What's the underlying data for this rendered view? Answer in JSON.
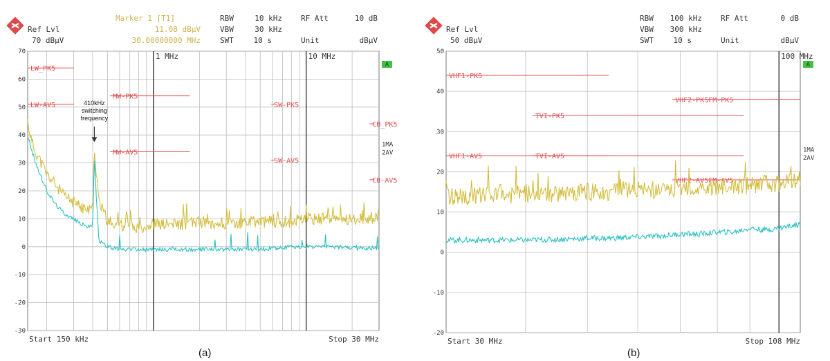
{
  "panels": [
    {
      "id": "a",
      "caption": "(a)",
      "header": {
        "ref_label": "Ref Lvl",
        "ref_value": "70 dBµV",
        "marker_title": "Marker 1 [T1]",
        "marker_level": "11.08 dBµV",
        "marker_freq": "30.00000000 MHz",
        "rbw_label": "RBW",
        "rbw_value": "10 kHz",
        "vbw_label": "VBW",
        "vbw_value": "30 kHz",
        "swt_label": "SWT",
        "swt_value": "10 s",
        "att_label": "RF Att",
        "att_value": "10 dB",
        "unit_label": "Unit",
        "unit_value": "dBµV"
      },
      "start_label": "Start 150 kHz",
      "stop_label": "Stop 30 MHz",
      "trace_labels": [
        "1MA",
        "2AV"
      ],
      "green_tag": "A",
      "decade_labels": [
        {
          "f": 1,
          "label": "1 MHz"
        },
        {
          "f": 10,
          "label": "10 MHz"
        }
      ],
      "annotation": {
        "lines": [
          "410kHz",
          "switching",
          "frequency"
        ],
        "x": 0.41,
        "y": 37
      }
    },
    {
      "id": "b",
      "caption": "(b)",
      "header": {
        "ref_label": "Ref Lvl",
        "ref_value": "50 dBµV",
        "rbw_label": "RBW",
        "rbw_value": "100 kHz",
        "vbw_label": "VBW",
        "vbw_value": "300 kHz",
        "swt_label": "SWT",
        "swt_value": "10 s",
        "att_label": "RF Att",
        "att_value": "0 dB",
        "unit_label": "Unit",
        "unit_value": "dBµV"
      },
      "start_label": "Start 30 MHz",
      "stop_label": "Stop 108 MHz",
      "trace_labels": [
        "1MA",
        "2AV"
      ],
      "green_tag": "A",
      "decade_labels": [
        {
          "f": 100,
          "label": "100 MHz"
        }
      ]
    }
  ],
  "chart_data": [
    {
      "type": "line",
      "x_scale": "log",
      "xlim": [
        0.15,
        30
      ],
      "ylim": [
        -30,
        70
      ],
      "yticks": [
        70,
        60,
        50,
        40,
        30,
        20,
        10,
        0,
        -10,
        -20,
        -30
      ],
      "ytick_labels": [
        "70",
        "60",
        "50",
        "40",
        "30",
        "20",
        "10",
        "0",
        "-10",
        "-20",
        "-30"
      ],
      "grid": true,
      "limit_lines": [
        {
          "label": "LW_PK5",
          "level": 64,
          "x1": 0.15,
          "x2": 0.3
        },
        {
          "label": "LW-AV5",
          "level": 51,
          "x1": 0.15,
          "x2": 0.3
        },
        {
          "label": "MW-PK5",
          "level": 54,
          "x1": 0.52,
          "x2": 1.73
        },
        {
          "label": "MW-AV5",
          "level": 34,
          "x1": 0.52,
          "x2": 1.73
        },
        {
          "label": "SW-PK5",
          "level": 51,
          "x1": 5.9,
          "x2": 6.2
        },
        {
          "label": "SW-AV5",
          "level": 31,
          "x1": 5.9,
          "x2": 6.2
        },
        {
          "label": "CB_PK5",
          "level": 44,
          "x1": 26,
          "x2": 28
        },
        {
          "label": "CB-AV5",
          "level": 24,
          "x1": 26,
          "x2": 28
        }
      ],
      "series": [
        {
          "name": "1MA",
          "color": "#d2bd3c",
          "x": [
            0.15,
            0.16,
            0.18,
            0.2,
            0.23,
            0.26,
            0.3,
            0.34,
            0.38,
            0.4,
            0.41,
            0.42,
            0.44,
            0.5,
            0.6,
            0.8,
            1,
            1.5,
            2,
            3,
            5,
            8,
            10,
            15,
            20,
            25,
            30
          ],
          "y": [
            45,
            37,
            31,
            26,
            22,
            18,
            16,
            14,
            13,
            14,
            36,
            28,
            16,
            9,
            8,
            7,
            8,
            8,
            9,
            8,
            9,
            9,
            10,
            10,
            10,
            10,
            11
          ]
        },
        {
          "name": "2AV",
          "color": "#2bbfc0",
          "x": [
            0.15,
            0.16,
            0.18,
            0.2,
            0.23,
            0.26,
            0.3,
            0.34,
            0.38,
            0.4,
            0.41,
            0.42,
            0.44,
            0.5,
            0.6,
            0.8,
            1,
            1.5,
            2,
            3,
            5,
            8,
            10,
            15,
            20,
            25,
            30
          ],
          "y": [
            40,
            34,
            26,
            20,
            15,
            12,
            10,
            8,
            7,
            8,
            33,
            20,
            2,
            0,
            -1,
            -1,
            -1,
            -1,
            -1,
            -1,
            -1,
            0,
            0,
            0,
            -0.5,
            -0.5,
            -0.5
          ]
        }
      ]
    },
    {
      "type": "line",
      "x_scale": "log",
      "xlim": [
        30,
        108
      ],
      "ylim": [
        -20,
        50
      ],
      "yticks": [
        50,
        40,
        30,
        20,
        10,
        0,
        -10,
        -20
      ],
      "ytick_labels": [
        "50",
        "40",
        "30",
        "20",
        "10",
        "0",
        "-10",
        "-20"
      ],
      "grid": true,
      "limit_lines": [
        {
          "label": "VHF1-PK5",
          "level": 44,
          "x1": 30,
          "x2": 54
        },
        {
          "label": "VHF1-AV5",
          "level": 24,
          "x1": 30,
          "x2": 54
        },
        {
          "label": "TVI-PK5",
          "level": 34,
          "x1": 41,
          "x2": 88
        },
        {
          "label": "TVI-AV5",
          "level": 24,
          "x1": 41,
          "x2": 88
        },
        {
          "label": "VHF2-PK5FM-PK5",
          "level": 38,
          "x1": 68,
          "x2": 108
        },
        {
          "label": "VHF2-AV5FM-AV5",
          "level": 18,
          "x1": 68,
          "x2": 108
        }
      ],
      "series": [
        {
          "name": "1MA",
          "color": "#d2bd3c",
          "x": [
            30,
            35,
            40,
            45,
            50,
            55,
            60,
            65,
            70,
            75,
            80,
            85,
            90,
            95,
            100,
            108
          ],
          "y": [
            14,
            14,
            14.5,
            14.5,
            15,
            15,
            15.5,
            15.5,
            15.5,
            16,
            16,
            16.5,
            16.5,
            17,
            17,
            18
          ]
        },
        {
          "name": "2AV",
          "color": "#2bbfc0",
          "x": [
            30,
            35,
            40,
            45,
            50,
            55,
            60,
            65,
            70,
            75,
            80,
            85,
            90,
            95,
            100,
            108
          ],
          "y": [
            3,
            3,
            3,
            3.2,
            3.5,
            3.5,
            3.8,
            4,
            4.5,
            4.5,
            5,
            5,
            6,
            5.5,
            6,
            7
          ]
        }
      ]
    }
  ]
}
